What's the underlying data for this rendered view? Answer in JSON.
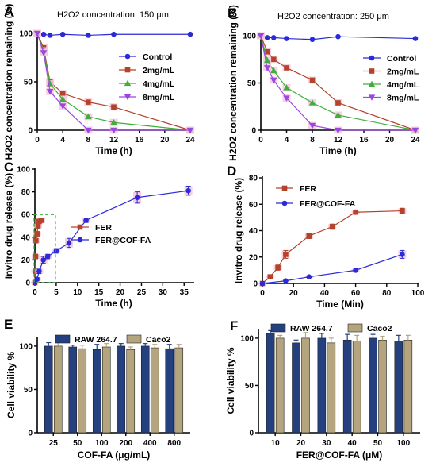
{
  "colors": {
    "Control": "#2a2ad8",
    "2mg/mL": "#b5422a",
    "4mg/mL": "#3fae3c",
    "8mg/mL": "#9a46e0",
    "FER": "#b5422a",
    "FER@COF-FA": "#2a2ad8",
    "RAW 264.7": "#24407e",
    "Caco2": "#b5a57e",
    "inset": "#3fae3c",
    "err_fill": "#f6c9dc"
  },
  "chart_data": [
    {
      "panel": "A",
      "type": "line",
      "title": "H2O2 concentration: 150 μm",
      "xlabel": "Time (h)",
      "ylabel": "H2O2 concentration remaining (%)",
      "xlim": [
        0,
        24
      ],
      "ylim": [
        0,
        100
      ],
      "xticks": [
        "0",
        "4",
        "8",
        "12",
        "16",
        "20",
        "24"
      ],
      "yticks": [
        "0",
        "50",
        "100"
      ],
      "legend_position": "right",
      "series": [
        {
          "name": "Control",
          "x": [
            0,
            1,
            2,
            4,
            8,
            12,
            24
          ],
          "y": [
            100,
            99,
            98,
            99,
            98,
            99,
            99
          ]
        },
        {
          "name": "2mg/mL",
          "x": [
            0,
            1,
            2,
            4,
            8,
            12,
            24
          ],
          "y": [
            100,
            85,
            50,
            38,
            29,
            24,
            0
          ]
        },
        {
          "name": "4mg/mL",
          "x": [
            0,
            1,
            2,
            4,
            8,
            12,
            24
          ],
          "y": [
            100,
            82,
            48,
            32,
            14,
            8,
            0
          ]
        },
        {
          "name": "8mg/mL",
          "x": [
            0,
            1,
            2,
            4,
            8,
            12,
            24
          ],
          "y": [
            100,
            80,
            40,
            25,
            0,
            0,
            0
          ]
        }
      ]
    },
    {
      "panel": "B",
      "type": "line",
      "title": "H2O2 concentration: 250 μm",
      "xlabel": "Time (h)",
      "ylabel": "H2O2 concentration remaining (%)",
      "xlim": [
        0,
        24
      ],
      "ylim": [
        0,
        100
      ],
      "xticks": [
        "0",
        "4",
        "8",
        "12",
        "16",
        "20",
        "24"
      ],
      "yticks": [
        "0",
        "50",
        "100"
      ],
      "legend_position": "right",
      "series": [
        {
          "name": "Control",
          "x": [
            0,
            1,
            2,
            4,
            8,
            12,
            24
          ],
          "y": [
            100,
            98,
            98,
            97,
            96,
            99,
            97
          ]
        },
        {
          "name": "2mg/mL",
          "x": [
            0,
            1,
            2,
            4,
            8,
            12,
            24
          ],
          "y": [
            100,
            83,
            75,
            66,
            53,
            29,
            0
          ]
        },
        {
          "name": "4mg/mL",
          "x": [
            0,
            1,
            2,
            4,
            8,
            12,
            24
          ],
          "y": [
            100,
            74,
            63,
            45,
            29,
            16,
            0
          ]
        },
        {
          "name": "8mg/mL",
          "x": [
            0,
            1,
            2,
            4,
            8,
            12,
            24
          ],
          "y": [
            100,
            66,
            53,
            34,
            5,
            0,
            0
          ]
        }
      ]
    },
    {
      "panel": "C",
      "type": "line",
      "xlabel": "Time (h)",
      "ylabel": "Invitro drug release (%)",
      "xlim": [
        0,
        37
      ],
      "ylim": [
        0,
        100
      ],
      "xticks": [
        "0",
        "5",
        "10",
        "15",
        "20",
        "25",
        "30",
        "35"
      ],
      "yticks": [
        "0",
        "20",
        "40",
        "60",
        "80",
        "100"
      ],
      "legend_position": "middle",
      "series": [
        {
          "name": "FER",
          "x": [
            0,
            0.083,
            0.167,
            0.25,
            0.5,
            0.75,
            1,
            1.5
          ],
          "y": [
            0,
            10,
            23,
            37,
            43,
            50,
            54,
            55
          ],
          "err": [
            1,
            1.5,
            2,
            2,
            2,
            2,
            2,
            2
          ]
        },
        {
          "name": "FER@COF-FA",
          "x": [
            0,
            0.5,
            1,
            2,
            3,
            5,
            8,
            12,
            24,
            36
          ],
          "y": [
            0,
            3,
            10,
            20,
            23,
            28,
            35,
            55,
            75,
            81
          ],
          "err": [
            1,
            1.5,
            2,
            3,
            2,
            2,
            4,
            2,
            5,
            4
          ]
        }
      ]
    },
    {
      "panel": "D",
      "type": "line",
      "xlabel": "Time (Min)",
      "ylabel": "Invitro drug release (%)",
      "xlim": [
        0,
        100
      ],
      "ylim": [
        0,
        80
      ],
      "xticks": [
        "0",
        "20",
        "40",
        "60",
        "80",
        "100"
      ],
      "yticks": [
        "0",
        "20",
        "40",
        "60",
        "80"
      ],
      "legend_position": "top-left",
      "series": [
        {
          "name": "FER",
          "x": [
            0,
            5,
            10,
            15,
            30,
            45,
            60,
            90
          ],
          "y": [
            0,
            5,
            12,
            22,
            36,
            43,
            54,
            55
          ],
          "err": [
            0.5,
            1,
            2,
            3,
            2,
            2,
            1,
            2
          ]
        },
        {
          "name": "FER@COF-FA",
          "x": [
            0,
            15,
            30,
            60,
            90
          ],
          "y": [
            0,
            2,
            5,
            10,
            22
          ],
          "err": [
            0.3,
            0.5,
            0.5,
            1,
            3
          ]
        }
      ]
    },
    {
      "panel": "E",
      "type": "bar",
      "xlabel": "COF-FA (μg/mL)",
      "ylabel": "Cell viability %",
      "categories": [
        "25",
        "50",
        "100",
        "200",
        "400",
        "800"
      ],
      "ylim": [
        0,
        110
      ],
      "yticks": [
        "0",
        "50",
        "100"
      ],
      "legend_position": "top",
      "series": [
        {
          "name": "RAW 264.7",
          "values": [
            100,
            99,
            96,
            100,
            100,
            97
          ],
          "err": [
            4,
            2,
            6,
            3,
            3,
            5
          ]
        },
        {
          "name": "Caco2",
          "values": [
            100,
            97,
            99,
            96,
            98,
            98
          ],
          "err": [
            5,
            4,
            4,
            3,
            4,
            4
          ]
        }
      ]
    },
    {
      "panel": "F",
      "type": "bar",
      "xlabel": "FER@COF-FA (μM)",
      "ylabel": "Cell viability %",
      "categories": [
        "10",
        "20",
        "30",
        "40",
        "50",
        "100"
      ],
      "ylim": [
        0,
        110
      ],
      "yticks": [
        "0",
        "50",
        "100"
      ],
      "legend_position": "top",
      "series": [
        {
          "name": "RAW 264.7",
          "values": [
            105,
            95,
            100,
            98,
            100,
            97
          ],
          "err": [
            3,
            3,
            5,
            6,
            4,
            6
          ]
        },
        {
          "name": "Caco2",
          "values": [
            100,
            100,
            95,
            97,
            98,
            98
          ],
          "err": [
            3,
            6,
            5,
            6,
            4,
            5
          ]
        }
      ]
    }
  ]
}
